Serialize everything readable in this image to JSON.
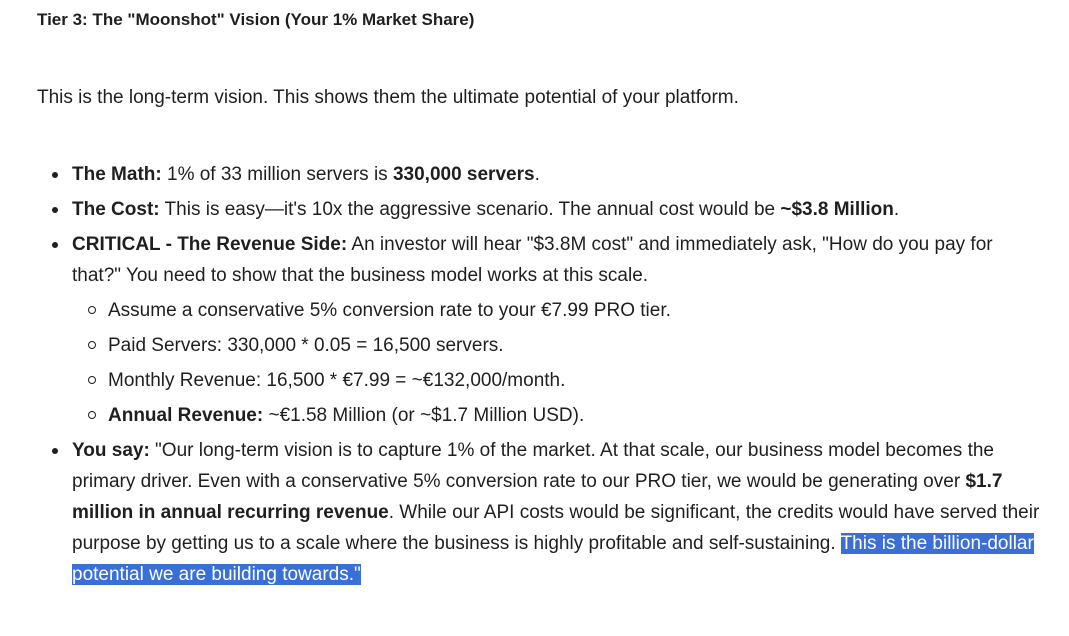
{
  "heading": "Tier 3: The \"Moonshot\" Vision (Your 1% Market Share)",
  "intro": "This is the long-term vision. This shows them the ultimate potential of your platform.",
  "bullets": {
    "math": {
      "label": "The Math:",
      "text": " 1% of 33 million servers is ",
      "bold": "330,000 servers",
      "end": "."
    },
    "cost": {
      "label": "The Cost:",
      "text": " This is easy—it's 10x the aggressive scenario. The annual cost would be ",
      "bold": "~$3.8 Million",
      "end": "."
    },
    "critical": {
      "label": "CRITICAL - The Revenue Side:",
      "text": " An investor will hear \"$3.8M cost\" and immediately ask, \"How do you pay for that?\" You need to show that the business model works at this scale.",
      "sub": {
        "assume": "Assume a conservative 5% conversion rate to your €7.99 PRO tier.",
        "paid": "Paid Servers: 330,000 * 0.05 = 16,500 servers.",
        "monthly": "Monthly Revenue: 16,500 * €7.99 = ~€132,000/month.",
        "annual_label": "Annual Revenue:",
        "annual_text": " ~€1.58 Million (or ~$1.7 Million USD)."
      }
    },
    "say": {
      "label": "You say:",
      "text1": " \"Our long-term vision is to capture 1% of the market. At that scale, our business model becomes the primary driver. Even with a conservative 5% conversion rate to our PRO tier, we would be generating over ",
      "bold": "$1.7 million in annual recurring revenue",
      "text2": ". While our API costs would be significant, the credits would have served their purpose by getting us to a scale where the business is highly profitable and self-sustaining. ",
      "highlight": "This is the billion-dollar potential we are building towards.\""
    }
  },
  "colors": {
    "text": "#1f1f1f",
    "selection_background": "#3a6fd8",
    "selection_text": "#ffffff",
    "background": "#ffffff"
  }
}
